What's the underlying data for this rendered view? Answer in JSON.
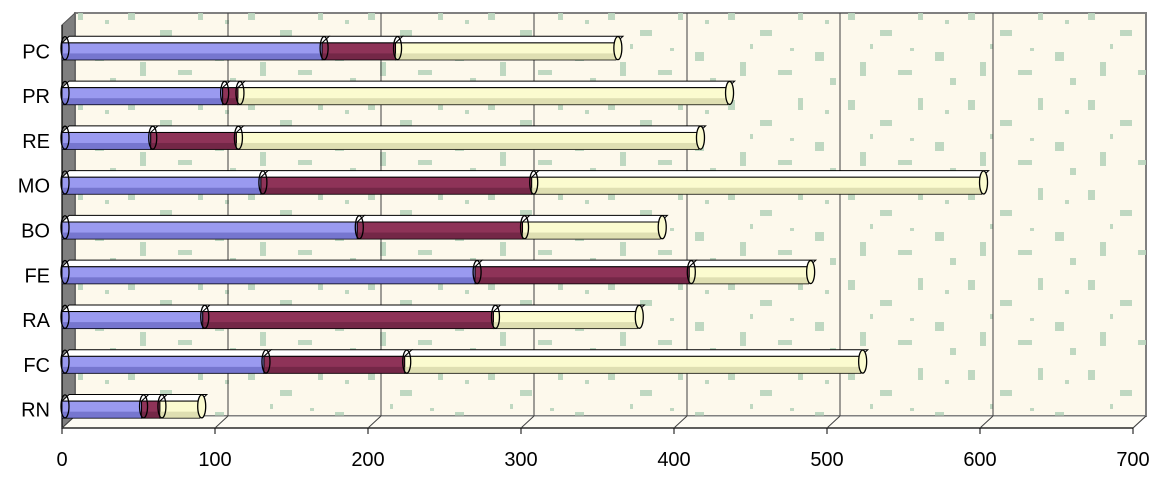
{
  "chart_data": {
    "type": "bar",
    "orientation": "horizontal",
    "stacked": true,
    "style": "3d-cylinder",
    "categories": [
      "PC",
      "PR",
      "RE",
      "MO",
      "BO",
      "FE",
      "RA",
      "FC",
      "RN"
    ],
    "series": [
      {
        "values": [
          170,
          105,
          58,
          130,
          193,
          270,
          92,
          132,
          52
        ]
      },
      {
        "values": [
          48,
          10,
          56,
          177,
          108,
          140,
          190,
          92,
          12
        ]
      },
      {
        "values": [
          144,
          320,
          302,
          294,
          90,
          78,
          94,
          298,
          26
        ]
      }
    ],
    "xlim": [
      0,
      700
    ],
    "x_ticks": [
      "0",
      "100",
      "200",
      "300",
      "400",
      "500",
      "600",
      "700"
    ],
    "grid": true,
    "legend": "none",
    "colors": {
      "series": [
        "#9a9af0",
        "#8e3358",
        "#fbfbcf"
      ],
      "series_dark": [
        "#5a5ab4",
        "#5e1e3a",
        "#c9c99a"
      ],
      "plot_background": "#fdf9ec",
      "texture": "#b8d4bc",
      "gridline": "#404040",
      "frame": "#808080",
      "side_wall": "#7f7f7f"
    }
  }
}
